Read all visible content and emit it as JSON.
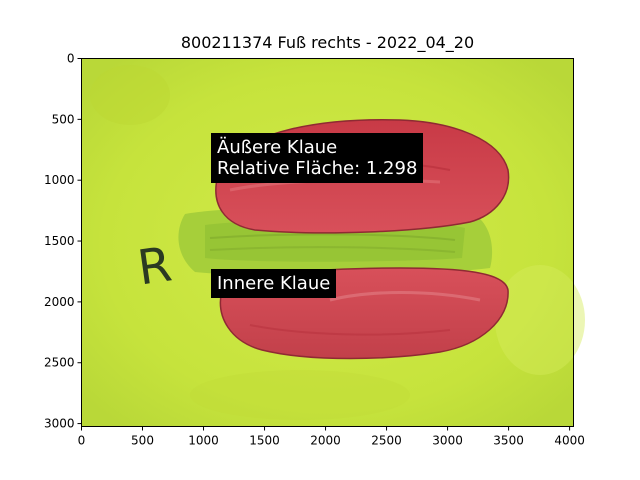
{
  "title": "800211374 Fuß rechts - 2022_04_20",
  "image": {
    "background_color": "#c6e33c",
    "claw_overlay_color": "#d8464f",
    "stocking_color": "#9ccc3a",
    "marker_letter": "R"
  },
  "axes": {
    "xlim": [
      0,
      4032
    ],
    "ylim": [
      3024,
      0
    ],
    "x_ticks": [
      "0",
      "500",
      "1000",
      "1500",
      "2000",
      "2500",
      "3000",
      "3500",
      "4000"
    ],
    "y_ticks": [
      "0",
      "500",
      "1000",
      "1500",
      "2000",
      "2500",
      "3000"
    ]
  },
  "annotations": {
    "outer_claw": "Äußere Klaue\nRelative Fläche: 1.298",
    "inner_claw": "Innere Klaue"
  }
}
